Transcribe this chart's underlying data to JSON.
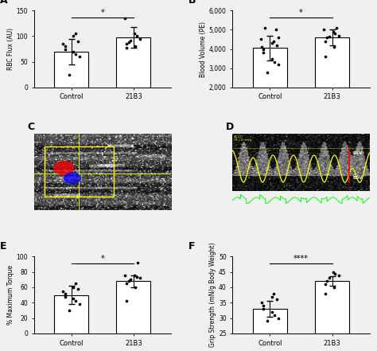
{
  "panel_A": {
    "label": "A",
    "ylabel": "RBC Flux (AU)",
    "ylim": [
      0,
      150
    ],
    "yticks": [
      0,
      50,
      100,
      150
    ],
    "bar_means": [
      70,
      98
    ],
    "bar_sems": [
      25,
      20
    ],
    "categories": [
      "Control",
      "21B3"
    ],
    "control_dots": [
      25,
      60,
      65,
      70,
      75,
      80,
      85,
      90,
      100,
      105
    ],
    "b3_dots": [
      78,
      80,
      85,
      88,
      92,
      95,
      100,
      105,
      135
    ],
    "sig_label": "*"
  },
  "panel_B": {
    "label": "B",
    "ylabel": "Blood Volume (PE)",
    "ylim": [
      2000,
      6000
    ],
    "yticks": [
      2000,
      3000,
      4000,
      5000,
      6000
    ],
    "bar_means": [
      4050,
      4600
    ],
    "bar_sems": [
      650,
      400
    ],
    "categories": [
      "Control",
      "21B3"
    ],
    "control_dots": [
      2800,
      3200,
      3300,
      3500,
      3800,
      4000,
      4100,
      4200,
      4300,
      4400,
      4500,
      4600,
      5000,
      5100
    ],
    "b3_dots": [
      3600,
      4100,
      4400,
      4600,
      4650,
      4700,
      4800,
      4900,
      5000,
      5100
    ],
    "sig_label": "*"
  },
  "panel_E": {
    "label": "E",
    "ylabel": "% Maximum Torque",
    "ylim": [
      0,
      100
    ],
    "yticks": [
      0,
      20,
      40,
      60,
      80,
      100
    ],
    "bar_means": [
      50,
      68
    ],
    "bar_sems": [
      12,
      8
    ],
    "categories": [
      "Control",
      "21B3"
    ],
    "control_dots": [
      30,
      38,
      42,
      45,
      48,
      52,
      55,
      58,
      60,
      65
    ],
    "b3_dots": [
      42,
      60,
      65,
      68,
      70,
      72,
      73,
      75,
      76,
      92
    ],
    "sig_label": "*"
  },
  "panel_F": {
    "label": "F",
    "ylabel": "Grip Strength (mN/g Body Weight)",
    "ylim": [
      25,
      50
    ],
    "yticks": [
      25,
      30,
      35,
      40,
      45,
      50
    ],
    "bar_means": [
      33,
      42
    ],
    "bar_sems": [
      2.5,
      1.5
    ],
    "categories": [
      "Control",
      "21B3"
    ],
    "control_dots": [
      29,
      30,
      31,
      32,
      33,
      34,
      35,
      36,
      37,
      38
    ],
    "b3_dots": [
      38,
      40,
      41,
      42,
      43,
      44,
      44.5,
      45
    ],
    "sig_label": "****"
  },
  "bar_color": "#ffffff",
  "bar_edgecolor": "#000000",
  "dot_color": "#000000",
  "errorbar_color": "#000000",
  "sig_line_color": "#000000",
  "background_color": "#f0f0f0"
}
